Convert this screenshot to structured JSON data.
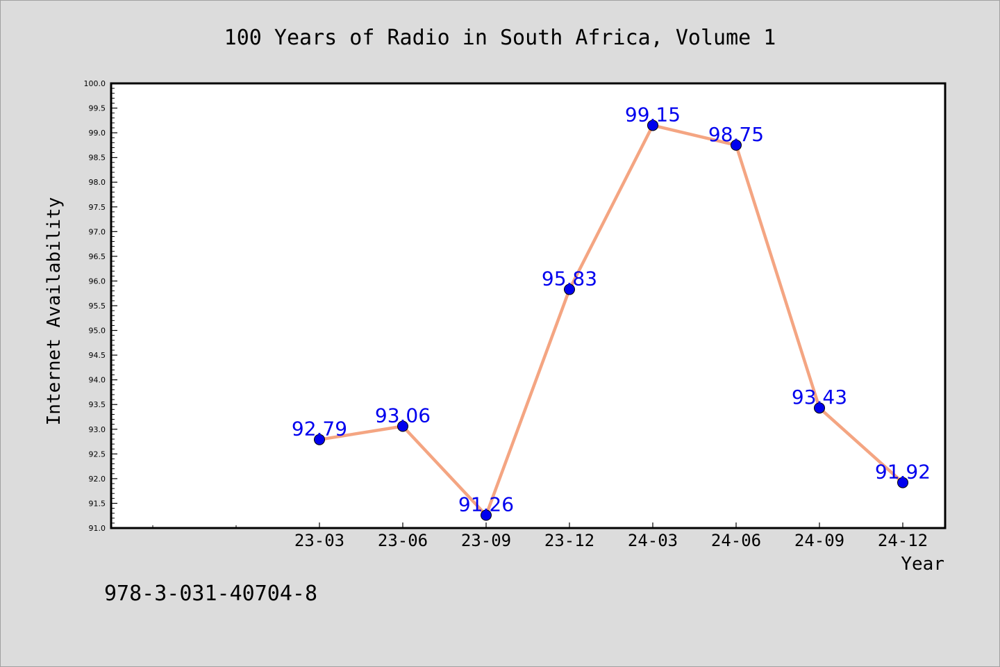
{
  "chart_data": {
    "type": "line",
    "title": "100 Years of Radio in South Africa, Volume 1",
    "xlabel": "Year",
    "ylabel": "Internet Availability",
    "categories": [
      "23-03",
      "23-06",
      "23-09",
      "23-12",
      "24-03",
      "24-06",
      "24-09",
      "24-12"
    ],
    "series": [
      {
        "values": [
          92.79,
          93.06,
          91.26,
          95.83,
          99.15,
          98.75,
          93.43,
          91.92
        ]
      }
    ],
    "data_labels": [
      "92.79",
      "93.06",
      "91.26",
      "95.83",
      "99.15",
      "98.75",
      "93.43",
      "91.92"
    ],
    "ylim": [
      91.0,
      100.0
    ],
    "y_ticks": [
      "91.0",
      "91.5",
      "92.0",
      "92.5",
      "93.0",
      "93.5",
      "94.0",
      "94.5",
      "95.0",
      "95.5",
      "96.0",
      "96.5",
      "97.0",
      "97.5",
      "98.0",
      "98.5",
      "99.0",
      "99.5",
      "100.0"
    ],
    "grid": false,
    "line_color": "#f4a582",
    "marker_color": "#0000ee",
    "label_color": "#0000ee"
  },
  "annotation": "978-3-031-40704-8"
}
